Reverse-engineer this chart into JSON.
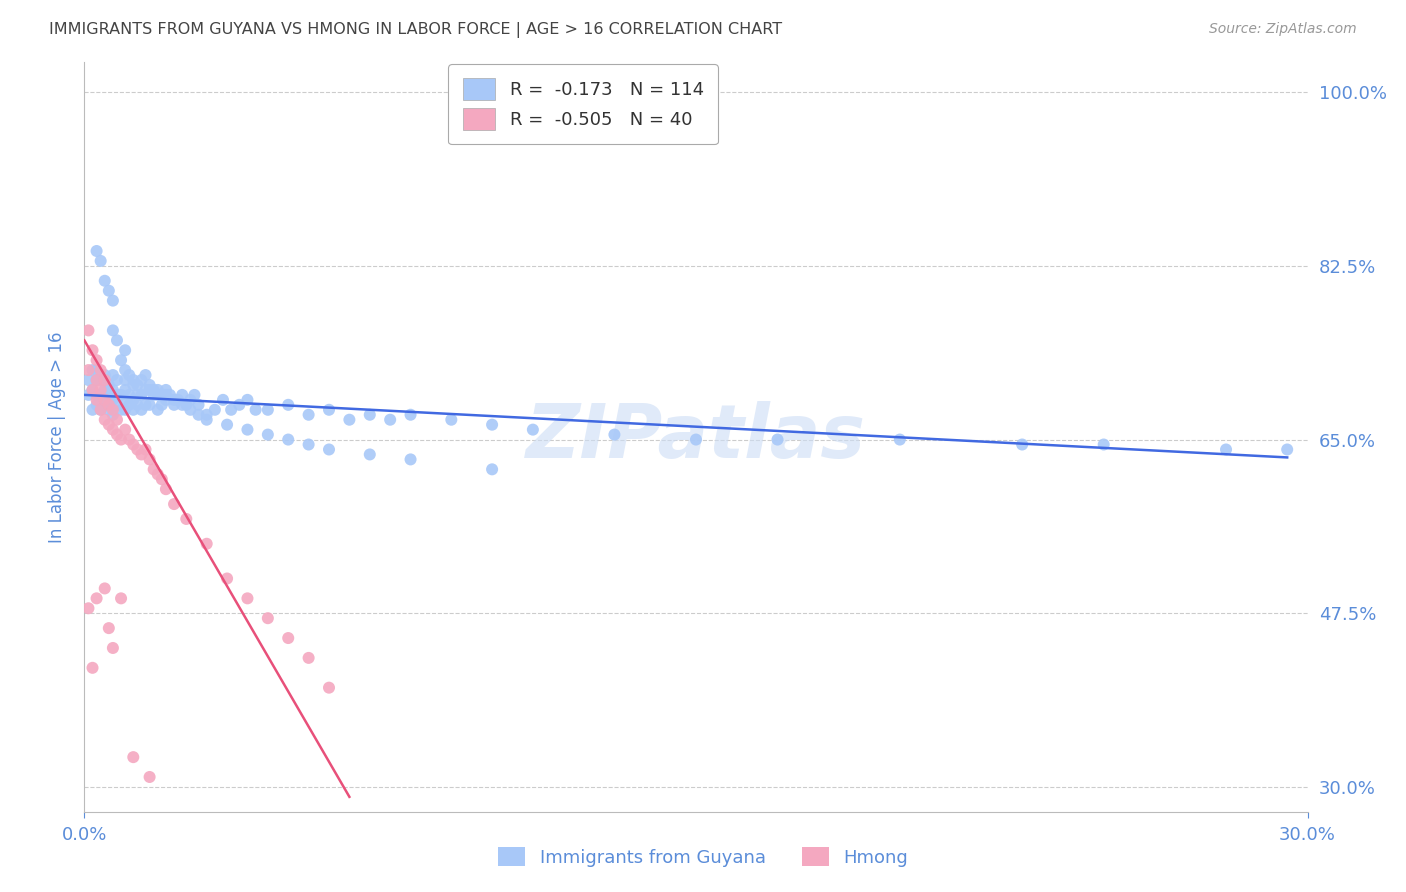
{
  "title": "IMMIGRANTS FROM GUYANA VS HMONG IN LABOR FORCE | AGE > 16 CORRELATION CHART",
  "source": "Source: ZipAtlas.com",
  "ylabel_label": "In Labor Force | Age > 16",
  "legend_labels": [
    "Immigrants from Guyana",
    "Hmong"
  ],
  "watermark": "ZIPatlas",
  "guyana_color": "#a8c8f8",
  "hmong_color": "#f4a8c0",
  "guyana_line_color": "#4169e1",
  "hmong_line_color": "#e8507a",
  "title_color": "#444444",
  "tick_color": "#5b8dd9",
  "grid_color": "#cccccc",
  "background_color": "#ffffff",
  "xmin": 0.0,
  "xmax": 0.3,
  "ymin": 0.275,
  "ymax": 1.03,
  "ytick_vals": [
    0.3,
    0.475,
    0.65,
    0.825,
    1.0
  ],
  "ytick_labels": [
    "30.0%",
    "47.5%",
    "65.0%",
    "82.5%",
    "100.0%"
  ],
  "xtick_vals": [
    0.0,
    0.3
  ],
  "xtick_labels": [
    "0.0%",
    "30.0%"
  ],
  "guyana_scatter_x": [
    0.001,
    0.001,
    0.002,
    0.002,
    0.002,
    0.003,
    0.003,
    0.003,
    0.003,
    0.004,
    0.004,
    0.004,
    0.005,
    0.005,
    0.005,
    0.006,
    0.006,
    0.006,
    0.007,
    0.007,
    0.007,
    0.007,
    0.008,
    0.008,
    0.008,
    0.009,
    0.009,
    0.01,
    0.01,
    0.01,
    0.01,
    0.011,
    0.011,
    0.012,
    0.012,
    0.012,
    0.013,
    0.013,
    0.014,
    0.014,
    0.015,
    0.015,
    0.016,
    0.016,
    0.017,
    0.018,
    0.018,
    0.019,
    0.02,
    0.02,
    0.021,
    0.022,
    0.023,
    0.024,
    0.025,
    0.026,
    0.027,
    0.028,
    0.03,
    0.032,
    0.034,
    0.036,
    0.038,
    0.04,
    0.042,
    0.045,
    0.05,
    0.055,
    0.06,
    0.065,
    0.07,
    0.075,
    0.08,
    0.09,
    0.1,
    0.11,
    0.13,
    0.15,
    0.17,
    0.2,
    0.23,
    0.25,
    0.28,
    0.295,
    0.003,
    0.004,
    0.005,
    0.006,
    0.007,
    0.007,
    0.008,
    0.009,
    0.01,
    0.01,
    0.011,
    0.012,
    0.013,
    0.014,
    0.015,
    0.016,
    0.017,
    0.018,
    0.019,
    0.02,
    0.022,
    0.024,
    0.026,
    0.028,
    0.03,
    0.035,
    0.04,
    0.045,
    0.05,
    0.055,
    0.06,
    0.07,
    0.08,
    0.1
  ],
  "guyana_scatter_y": [
    0.695,
    0.71,
    0.68,
    0.7,
    0.72,
    0.685,
    0.695,
    0.71,
    0.72,
    0.68,
    0.695,
    0.71,
    0.685,
    0.7,
    0.715,
    0.68,
    0.695,
    0.705,
    0.675,
    0.69,
    0.7,
    0.715,
    0.685,
    0.695,
    0.71,
    0.68,
    0.695,
    0.68,
    0.69,
    0.7,
    0.71,
    0.685,
    0.695,
    0.68,
    0.69,
    0.705,
    0.685,
    0.695,
    0.68,
    0.695,
    0.685,
    0.7,
    0.685,
    0.7,
    0.695,
    0.68,
    0.695,
    0.685,
    0.69,
    0.7,
    0.695,
    0.685,
    0.69,
    0.695,
    0.685,
    0.69,
    0.695,
    0.685,
    0.675,
    0.68,
    0.69,
    0.68,
    0.685,
    0.69,
    0.68,
    0.68,
    0.685,
    0.675,
    0.68,
    0.67,
    0.675,
    0.67,
    0.675,
    0.67,
    0.665,
    0.66,
    0.655,
    0.65,
    0.65,
    0.65,
    0.645,
    0.645,
    0.64,
    0.64,
    0.84,
    0.83,
    0.81,
    0.8,
    0.79,
    0.76,
    0.75,
    0.73,
    0.72,
    0.74,
    0.715,
    0.71,
    0.705,
    0.71,
    0.715,
    0.705,
    0.7,
    0.7,
    0.695,
    0.695,
    0.69,
    0.685,
    0.68,
    0.675,
    0.67,
    0.665,
    0.66,
    0.655,
    0.65,
    0.645,
    0.64,
    0.635,
    0.63,
    0.62
  ],
  "hmong_scatter_x": [
    0.001,
    0.001,
    0.002,
    0.002,
    0.003,
    0.003,
    0.003,
    0.004,
    0.004,
    0.004,
    0.005,
    0.005,
    0.005,
    0.006,
    0.006,
    0.007,
    0.007,
    0.008,
    0.008,
    0.009,
    0.01,
    0.011,
    0.012,
    0.013,
    0.014,
    0.015,
    0.016,
    0.017,
    0.018,
    0.019,
    0.02,
    0.022,
    0.025,
    0.03,
    0.035,
    0.04,
    0.045,
    0.05,
    0.055,
    0.06
  ],
  "hmong_scatter_y": [
    0.72,
    0.76,
    0.7,
    0.74,
    0.69,
    0.71,
    0.73,
    0.68,
    0.7,
    0.72,
    0.67,
    0.69,
    0.71,
    0.665,
    0.685,
    0.66,
    0.68,
    0.655,
    0.67,
    0.65,
    0.66,
    0.65,
    0.645,
    0.64,
    0.635,
    0.64,
    0.63,
    0.62,
    0.615,
    0.61,
    0.6,
    0.585,
    0.57,
    0.545,
    0.51,
    0.49,
    0.47,
    0.45,
    0.43,
    0.4
  ],
  "hmong_outliers_x": [
    0.001,
    0.002,
    0.003,
    0.005,
    0.006,
    0.007,
    0.009,
    0.012,
    0.016
  ],
  "hmong_outliers_y": [
    0.48,
    0.42,
    0.49,
    0.5,
    0.46,
    0.44,
    0.49,
    0.33,
    0.31
  ],
  "guyana_trendline_x": [
    0.0,
    0.295
  ],
  "guyana_trendline_y": [
    0.695,
    0.632
  ],
  "hmong_trendline_x": [
    0.0,
    0.065
  ],
  "hmong_trendline_y": [
    0.75,
    0.29
  ]
}
